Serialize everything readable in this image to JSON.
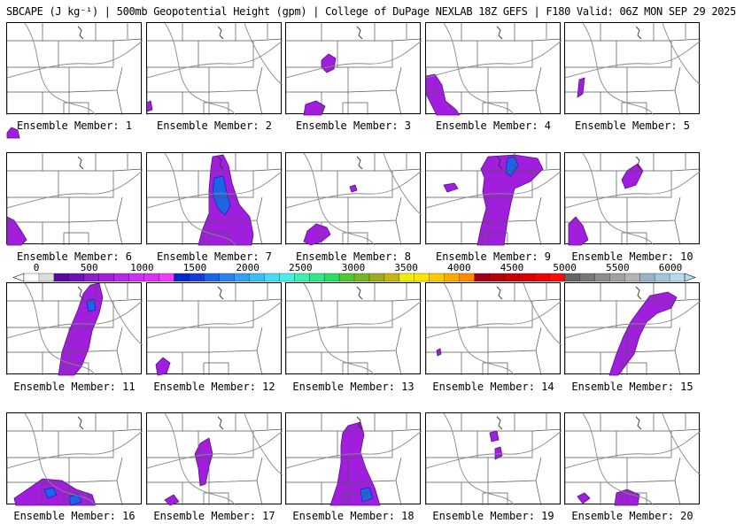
{
  "title": "SBCAPE (J kg⁻¹) | 500mb Geopotential Height (gpm) | College of DuPage NEXLAB 18Z GEFS | F180 Valid: 06Z MON SEP 29 2025",
  "member_label_prefix": "Ensemble Member:",
  "members": [
    "1",
    "2",
    "3",
    "4",
    "5",
    "6",
    "7",
    "8",
    "9",
    "10",
    "11",
    "12",
    "13",
    "14",
    "15",
    "16",
    "17",
    "18",
    "19",
    "20"
  ],
  "colorbar": {
    "tick_labels": [
      "0",
      "500",
      "1000",
      "1500",
      "2000",
      "2500",
      "3000",
      "3500",
      "4000",
      "4500",
      "5000",
      "5500",
      "6000"
    ],
    "range": [
      0,
      6000
    ],
    "colors": [
      "#ffffff",
      "#dcdcdc",
      "#5a0aa0",
      "#6e14b4",
      "#8c1ec8",
      "#a01edc",
      "#b428e6",
      "#c832f0",
      "#dc32f5",
      "#f03cff",
      "#0a28c8",
      "#143cdc",
      "#1e64e6",
      "#2882f0",
      "#32a0f5",
      "#3cbef5",
      "#46dcf5",
      "#46f0e6",
      "#3cf0b4",
      "#32e68c",
      "#28dc64",
      "#50c832",
      "#78b428",
      "#a0aa1e",
      "#c8b40a",
      "#f0f000",
      "#ffe600",
      "#ffc800",
      "#ffaa00",
      "#ff8c00",
      "#a0001e",
      "#b4000a",
      "#c80000",
      "#dc0000",
      "#f00000",
      "#ff0a0a",
      "#646464",
      "#787878",
      "#8c8c8c",
      "#a0a0a0",
      "#b4b4b4",
      "#96b4c8",
      "#a0c8dc",
      "#b4dcf0"
    ]
  }
}
